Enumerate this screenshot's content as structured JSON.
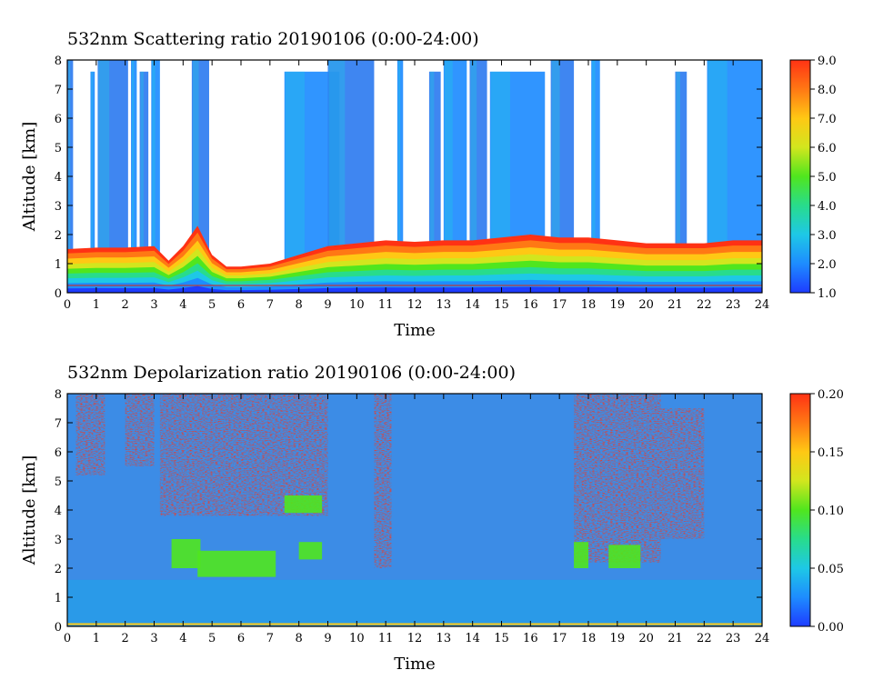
{
  "chart_data": [
    {
      "type": "heatmap",
      "title": "532nm Scattering ratio  20190106 (0:00-24:00)",
      "xlabel": "Time",
      "ylabel": "Altitude [km]",
      "xlim": [
        0,
        24
      ],
      "ylim": [
        0,
        8
      ],
      "x_ticks": [
        "0",
        "1",
        "2",
        "3",
        "4",
        "5",
        "6",
        "7",
        "8",
        "9",
        "10",
        "11",
        "12",
        "13",
        "14",
        "15",
        "16",
        "17",
        "18",
        "19",
        "20",
        "21",
        "22",
        "23",
        "24"
      ],
      "y_ticks": [
        "0",
        "1",
        "2",
        "3",
        "4",
        "5",
        "6",
        "7",
        "8"
      ],
      "colorbar": {
        "range": [
          1.0,
          9.0
        ],
        "ticks": [
          "1.0",
          "2.0",
          "3.0",
          "4.0",
          "5.0",
          "6.0",
          "7.0",
          "8.0",
          "9.0"
        ],
        "colors": [
          "#1e3cff",
          "#1e8cff",
          "#1ec8e6",
          "#28dc8c",
          "#50e61e",
          "#d2e61e",
          "#ffc814",
          "#ff7814",
          "#ff3214"
        ]
      },
      "fields": {
        "boundary_layer": {
          "base_km": 0.5,
          "top_km": [
            [
              0,
              1.5
            ],
            [
              1,
              1.55
            ],
            [
              2,
              1.55
            ],
            [
              3,
              1.6
            ],
            [
              3.5,
              1.1
            ],
            [
              4,
              1.6
            ],
            [
              4.5,
              2.3
            ],
            [
              5,
              1.3
            ],
            [
              5.5,
              0.9
            ],
            [
              6,
              0.9
            ],
            [
              7,
              1.0
            ],
            [
              8,
              1.3
            ],
            [
              9,
              1.6
            ],
            [
              10,
              1.7
            ],
            [
              11,
              1.8
            ],
            [
              12,
              1.75
            ],
            [
              13,
              1.8
            ],
            [
              14,
              1.8
            ],
            [
              15,
              1.9
            ],
            [
              16,
              2.0
            ],
            [
              17,
              1.9
            ],
            [
              18,
              1.9
            ],
            [
              19,
              1.8
            ],
            [
              20,
              1.7
            ],
            [
              21,
              1.7
            ],
            [
              22,
              1.7
            ],
            [
              23,
              1.8
            ],
            [
              24,
              1.8
            ]
          ]
        },
        "cloud_columns": [
          {
            "t0": 0.0,
            "t1": 0.2
          },
          {
            "t0": 0.8,
            "t1": 0.95
          },
          {
            "t0": 1.05,
            "t1": 2.1
          },
          {
            "t0": 2.2,
            "t1": 2.4
          },
          {
            "t0": 2.5,
            "t1": 2.8
          },
          {
            "t0": 2.9,
            "t1": 3.2
          },
          {
            "t0": 4.3,
            "t1": 4.9
          },
          {
            "t0": 7.5,
            "t1": 9.4
          },
          {
            "t0": 9.0,
            "t1": 10.6
          },
          {
            "t0": 11.4,
            "t1": 11.6
          },
          {
            "t0": 12.5,
            "t1": 12.9
          },
          {
            "t0": 13.0,
            "t1": 13.8
          },
          {
            "t0": 13.9,
            "t1": 14.5
          },
          {
            "t0": 14.6,
            "t1": 16.5
          },
          {
            "t0": 16.7,
            "t1": 17.5
          },
          {
            "t0": 18.1,
            "t1": 18.4
          },
          {
            "t0": 21.0,
            "t1": 21.4
          },
          {
            "t0": 22.1,
            "t1": 24.0
          }
        ]
      }
    },
    {
      "type": "heatmap",
      "title": "532nm Depolarization ratio  20190106 (0:00-24:00)",
      "xlabel": "Time",
      "ylabel": "Altitude [km]",
      "xlim": [
        0,
        24
      ],
      "ylim": [
        0,
        8
      ],
      "x_ticks": [
        "0",
        "1",
        "2",
        "3",
        "4",
        "5",
        "6",
        "7",
        "8",
        "9",
        "10",
        "11",
        "12",
        "13",
        "14",
        "15",
        "16",
        "17",
        "18",
        "19",
        "20",
        "21",
        "22",
        "23",
        "24"
      ],
      "y_ticks": [
        "0",
        "1",
        "2",
        "3",
        "4",
        "5",
        "6",
        "7",
        "8"
      ],
      "colorbar": {
        "range": [
          0.0,
          0.2
        ],
        "ticks": [
          "0.00",
          "0.05",
          "0.10",
          "0.15",
          "0.20"
        ],
        "colors": [
          "#1e3cff",
          "#1e8cff",
          "#1ec8e6",
          "#28dc8c",
          "#50e61e",
          "#d2e61e",
          "#ffc814",
          "#ff7814",
          "#ff3214"
        ]
      },
      "fields": {
        "high_depol_regions": [
          {
            "t0": 0.3,
            "t1": 1.3,
            "z0": 5.2,
            "z1": 8
          },
          {
            "t0": 2.0,
            "t1": 3.0,
            "z0": 5.5,
            "z1": 8
          },
          {
            "t0": 3.2,
            "t1": 9.0,
            "z0": 3.8,
            "z1": 8
          },
          {
            "t0": 10.6,
            "t1": 11.2,
            "z0": 2.0,
            "z1": 8
          },
          {
            "t0": 17.5,
            "t1": 20.5,
            "z0": 2.2,
            "z1": 8
          },
          {
            "t0": 20.5,
            "t1": 22.0,
            "z0": 3.0,
            "z1": 7.5
          }
        ],
        "green_patches": [
          {
            "t0": 4.5,
            "t1": 7.2,
            "z0": 1.7,
            "z1": 2.6
          },
          {
            "t0": 3.6,
            "t1": 4.6,
            "z0": 2.0,
            "z1": 3.0
          },
          {
            "t0": 7.5,
            "t1": 8.8,
            "z0": 3.9,
            "z1": 4.5
          },
          {
            "t0": 8.0,
            "t1": 8.8,
            "z0": 2.3,
            "z1": 2.9
          },
          {
            "t0": 17.5,
            "t1": 18.0,
            "z0": 2.0,
            "z1": 2.9
          },
          {
            "t0": 18.7,
            "t1": 19.8,
            "z0": 2.0,
            "z1": 2.8
          }
        ]
      }
    }
  ]
}
